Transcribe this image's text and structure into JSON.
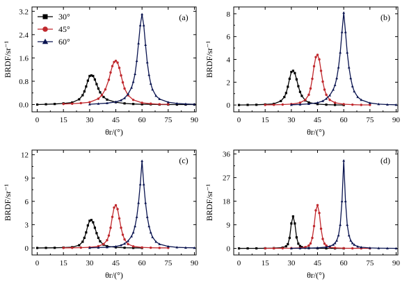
{
  "figure": {
    "colors": {
      "s30": "#000000",
      "s45": "#c0282d",
      "s60": "#0a1450",
      "axis": "#000000"
    }
  },
  "chart_data": [
    {
      "type": "line",
      "panel": "(a)",
      "xlabel": "θr/(°)",
      "ylabel": "BRDF/sr⁻¹",
      "xlim": [
        -3,
        91
      ],
      "ylim": [
        -0.25,
        3.35
      ],
      "xticks": [
        0,
        15,
        30,
        45,
        60,
        75,
        90
      ],
      "xtick_labels": [
        "0",
        "15",
        "30",
        "45",
        "60",
        "75",
        "90"
      ],
      "yticks": [
        0.0,
        0.8,
        1.6,
        2.4,
        3.2
      ],
      "ytick_labels": [
        "0.0",
        "0.8",
        "1.6",
        "2.4",
        "3.2"
      ],
      "legend": {
        "placement": "top-left",
        "entries": [
          "30°",
          "45°",
          "60°"
        ]
      },
      "series": [
        {
          "name": "30°",
          "marker": "square",
          "color": "#000000",
          "x": [
            0,
            5,
            10,
            15,
            20,
            24,
            26,
            27,
            28,
            29,
            30,
            31,
            32,
            33,
            34,
            35,
            36,
            38,
            40,
            45,
            50,
            55,
            60,
            65,
            70,
            75,
            80,
            85,
            90
          ],
          "y": [
            0.0,
            0.01,
            0.02,
            0.04,
            0.07,
            0.18,
            0.32,
            0.45,
            0.62,
            0.82,
            0.98,
            1.0,
            0.98,
            0.86,
            0.7,
            0.55,
            0.42,
            0.26,
            0.17,
            0.08,
            0.04,
            0.02,
            0.01,
            0.01,
            0.0,
            0.0,
            0.0,
            0.0,
            0.0
          ]
        },
        {
          "name": "45°",
          "marker": "circle",
          "color": "#c0282d",
          "x": [
            15,
            20,
            25,
            30,
            35,
            37,
            39,
            41,
            42,
            43,
            44,
            45,
            46,
            47,
            48,
            49,
            50,
            52,
            55,
            60,
            65,
            70,
            75
          ],
          "y": [
            0.02,
            0.03,
            0.05,
            0.08,
            0.2,
            0.32,
            0.52,
            0.85,
            1.1,
            1.32,
            1.46,
            1.5,
            1.44,
            1.26,
            1.0,
            0.76,
            0.55,
            0.32,
            0.16,
            0.06,
            0.03,
            0.01,
            0.01
          ]
        },
        {
          "name": "60°",
          "marker": "triangle",
          "color": "#0a1450",
          "x": [
            30,
            35,
            40,
            45,
            48,
            50,
            52,
            54,
            55,
            56,
            57,
            58,
            59,
            60,
            61,
            62,
            63,
            64,
            65,
            66,
            68,
            70,
            75,
            80,
            85,
            90
          ],
          "y": [
            0.01,
            0.03,
            0.05,
            0.09,
            0.15,
            0.22,
            0.36,
            0.58,
            0.78,
            1.05,
            1.5,
            2.1,
            2.72,
            3.1,
            2.72,
            2.05,
            1.45,
            1.02,
            0.72,
            0.52,
            0.3,
            0.19,
            0.08,
            0.04,
            0.02,
            0.01
          ]
        }
      ]
    },
    {
      "type": "line",
      "panel": "(b)",
      "xlabel": "θr/(°)",
      "ylabel": "BRDF/sr⁻¹",
      "xlim": [
        -3,
        91
      ],
      "ylim": [
        -0.6,
        8.6
      ],
      "xticks": [
        0,
        15,
        30,
        45,
        60,
        75,
        90
      ],
      "xtick_labels": [
        "0",
        "15",
        "30",
        "45",
        "60",
        "75",
        "90"
      ],
      "yticks": [
        0,
        2,
        4,
        6,
        8
      ],
      "ytick_labels": [
        "0",
        "2",
        "4",
        "6",
        "8"
      ],
      "series": [
        {
          "name": "30°",
          "marker": "square",
          "color": "#000000",
          "x": [
            0,
            5,
            10,
            15,
            20,
            24,
            26,
            27,
            28,
            29,
            30,
            31,
            32,
            33,
            34,
            35,
            36,
            38,
            40,
            45,
            50,
            55,
            60
          ],
          "y": [
            0.0,
            0.01,
            0.02,
            0.05,
            0.1,
            0.35,
            0.7,
            1.05,
            1.6,
            2.3,
            2.9,
            3.0,
            2.8,
            2.25,
            1.65,
            1.15,
            0.8,
            0.4,
            0.22,
            0.08,
            0.03,
            0.01,
            0.0
          ]
        },
        {
          "name": "45°",
          "marker": "circle",
          "color": "#c0282d",
          "x": [
            15,
            20,
            25,
            30,
            35,
            38,
            40,
            41,
            42,
            43,
            44,
            45,
            46,
            47,
            48,
            49,
            50,
            52,
            55,
            60,
            65,
            70,
            75
          ],
          "y": [
            0.01,
            0.02,
            0.04,
            0.08,
            0.2,
            0.45,
            0.9,
            1.45,
            2.3,
            3.4,
            4.2,
            4.4,
            4.0,
            3.0,
            2.05,
            1.35,
            0.9,
            0.45,
            0.2,
            0.07,
            0.03,
            0.01,
            0.01
          ]
        },
        {
          "name": "60°",
          "marker": "triangle",
          "color": "#0a1450",
          "x": [
            30,
            35,
            40,
            45,
            48,
            50,
            52,
            54,
            55,
            56,
            57,
            58,
            59,
            60,
            61,
            62,
            63,
            64,
            65,
            66,
            68,
            70,
            75,
            80,
            85,
            90
          ],
          "y": [
            0.02,
            0.05,
            0.1,
            0.2,
            0.35,
            0.55,
            0.85,
            1.35,
            1.75,
            2.35,
            3.3,
            4.6,
            6.4,
            8.1,
            6.4,
            4.6,
            3.3,
            2.35,
            1.65,
            1.2,
            0.7,
            0.45,
            0.18,
            0.08,
            0.04,
            0.02
          ]
        }
      ]
    },
    {
      "type": "line",
      "panel": "(c)",
      "xlabel": "θr/(°)",
      "ylabel": "BRDF/sr⁻¹",
      "xlim": [
        -3,
        91
      ],
      "ylim": [
        -0.9,
        12.6
      ],
      "xticks": [
        0,
        15,
        30,
        45,
        60,
        75,
        90
      ],
      "xtick_labels": [
        "0",
        "15",
        "30",
        "45",
        "60",
        "75",
        "90"
      ],
      "yticks": [
        0,
        3,
        6,
        9,
        12
      ],
      "ytick_labels": [
        "0",
        "3",
        "6",
        "9",
        "12"
      ],
      "series": [
        {
          "name": "30°",
          "marker": "square",
          "color": "#000000",
          "x": [
            0,
            5,
            10,
            15,
            20,
            24,
            26,
            27,
            28,
            29,
            30,
            31,
            32,
            33,
            34,
            35,
            36,
            38,
            40,
            45,
            50,
            55,
            60
          ],
          "y": [
            0.0,
            0.01,
            0.02,
            0.05,
            0.1,
            0.35,
            0.8,
            1.3,
            2.0,
            2.9,
            3.5,
            3.6,
            3.3,
            2.6,
            1.9,
            1.3,
            0.85,
            0.42,
            0.22,
            0.08,
            0.03,
            0.01,
            0.0
          ]
        },
        {
          "name": "45°",
          "marker": "circle",
          "color": "#c0282d",
          "x": [
            15,
            20,
            25,
            30,
            35,
            38,
            40,
            41,
            42,
            43,
            44,
            45,
            46,
            47,
            48,
            49,
            50,
            52,
            55,
            60,
            65,
            70,
            75
          ],
          "y": [
            0.01,
            0.02,
            0.04,
            0.08,
            0.22,
            0.5,
            1.0,
            1.6,
            2.6,
            4.0,
            5.2,
            5.5,
            5.0,
            3.8,
            2.6,
            1.7,
            1.1,
            0.5,
            0.2,
            0.07,
            0.03,
            0.01,
            0.01
          ]
        },
        {
          "name": "60°",
          "marker": "triangle",
          "color": "#0a1450",
          "x": [
            30,
            35,
            40,
            45,
            48,
            50,
            52,
            54,
            55,
            56,
            57,
            58,
            59,
            60,
            61,
            62,
            63,
            64,
            65,
            66,
            68,
            70,
            75,
            80,
            85,
            90
          ],
          "y": [
            0.02,
            0.05,
            0.1,
            0.2,
            0.35,
            0.55,
            0.9,
            1.5,
            2.0,
            2.8,
            4.0,
            5.8,
            8.2,
            11.2,
            8.2,
            5.8,
            4.0,
            2.8,
            2.0,
            1.4,
            0.8,
            0.5,
            0.2,
            0.08,
            0.04,
            0.02
          ]
        }
      ]
    },
    {
      "type": "line",
      "panel": "(d)",
      "xlabel": "θr/(°)",
      "ylabel": "BRDF/sr⁻¹",
      "xlim": [
        -3,
        91
      ],
      "ylim": [
        -2.5,
        37.5
      ],
      "xticks": [
        0,
        15,
        30,
        45,
        60,
        75,
        90
      ],
      "xtick_labels": [
        "0",
        "15",
        "30",
        "45",
        "60",
        "75",
        "90"
      ],
      "yticks": [
        0,
        9,
        18,
        27,
        36
      ],
      "ytick_labels": [
        "0",
        "9",
        "18",
        "27",
        "36"
      ],
      "series": [
        {
          "name": "30°",
          "marker": "square",
          "color": "#000000",
          "x": [
            0,
            5,
            10,
            15,
            20,
            25,
            27,
            28,
            29,
            30,
            31,
            32,
            33,
            34,
            35,
            36,
            38,
            40,
            45,
            50,
            55,
            60
          ],
          "y": [
            0.0,
            0.01,
            0.02,
            0.04,
            0.1,
            0.3,
            0.8,
            1.6,
            4.0,
            9.5,
            12.2,
            9.5,
            4.2,
            1.8,
            0.9,
            0.5,
            0.22,
            0.12,
            0.05,
            0.02,
            0.01,
            0.0
          ]
        },
        {
          "name": "45°",
          "marker": "circle",
          "color": "#c0282d",
          "x": [
            15,
            20,
            25,
            30,
            35,
            38,
            40,
            41,
            42,
            43,
            44,
            45,
            46,
            47,
            48,
            49,
            50,
            52,
            55,
            60,
            65,
            70,
            75
          ],
          "y": [
            0.01,
            0.02,
            0.04,
            0.08,
            0.2,
            0.5,
            1.1,
            1.9,
            4.0,
            8.5,
            14.5,
            16.5,
            13.5,
            7.5,
            3.6,
            1.8,
            1.1,
            0.45,
            0.2,
            0.07,
            0.03,
            0.01,
            0.01
          ]
        },
        {
          "name": "60°",
          "marker": "triangle",
          "color": "#0a1450",
          "x": [
            30,
            35,
            40,
            45,
            50,
            52,
            54,
            55,
            56,
            57,
            58,
            59,
            60,
            61,
            62,
            63,
            64,
            65,
            66,
            68,
            70,
            75,
            80,
            85,
            90
          ],
          "y": [
            0.02,
            0.05,
            0.1,
            0.2,
            0.5,
            0.8,
            1.4,
            2.0,
            3.0,
            5.0,
            9.0,
            18.0,
            33.5,
            18.0,
            9.0,
            5.0,
            3.0,
            2.0,
            1.4,
            0.7,
            0.45,
            0.18,
            0.08,
            0.04,
            0.02
          ]
        }
      ]
    }
  ]
}
